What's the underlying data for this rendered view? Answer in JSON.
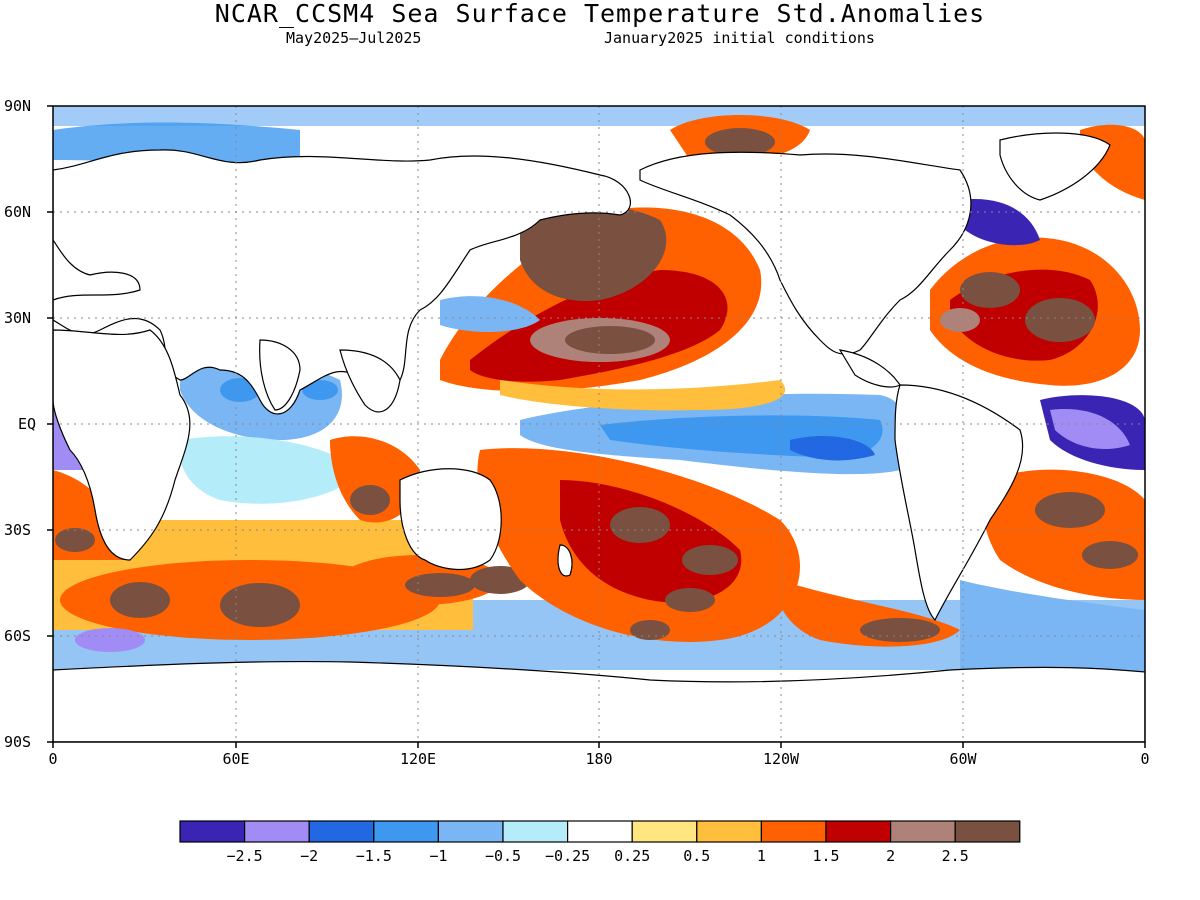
{
  "title": "NCAR_CCSM4 Sea Surface Temperature Std.Anomalies",
  "subtitle_left": "May2025–Jul2025",
  "subtitle_right": "January2025 initial conditions",
  "lat_ticks": [
    "90N",
    "60N",
    "30N",
    "EQ",
    "30S",
    "60S",
    "90S"
  ],
  "lon_ticks": [
    "0",
    "60E",
    "120E",
    "180",
    "120W",
    "60W",
    "0"
  ],
  "colorbar": {
    "colors": [
      "#3a24b4",
      "#a08cf4",
      "#2168e2",
      "#3f98ef",
      "#7ab6f3",
      "#b4ecfa",
      "#ffffff",
      "#ffe680",
      "#ffbe3c",
      "#ff6000",
      "#c00000",
      "#ae8278",
      "#7a5040"
    ],
    "labels": [
      "−2.5",
      "−2",
      "−1.5",
      "−1",
      "−0.5",
      "−0.25",
      "0.25",
      "0.5",
      "1",
      "1.5",
      "2",
      "2.5"
    ]
  }
}
